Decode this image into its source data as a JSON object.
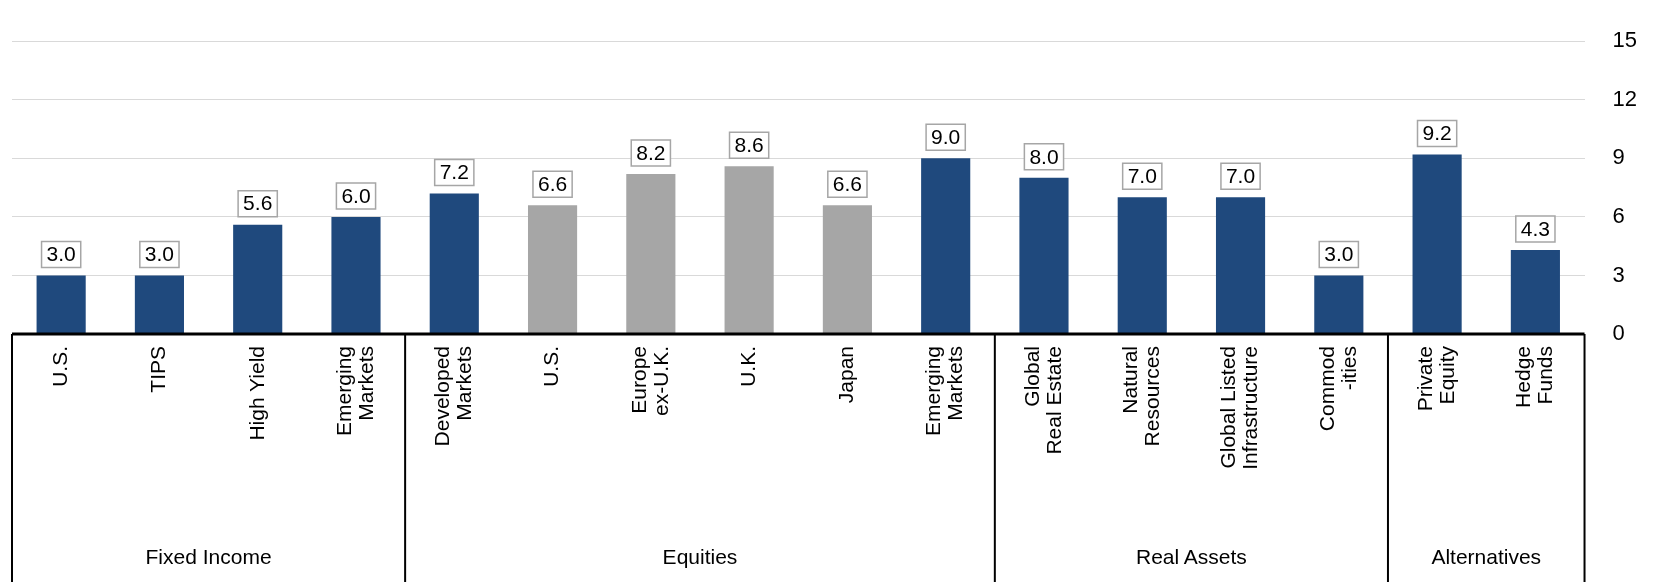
{
  "chart_data": {
    "type": "bar",
    "categories": [
      "U.S.",
      "TIPS",
      "High Yield",
      "Emerging\nMarkets",
      "Developed\nMarkets",
      "U.S.",
      "Europe\nex-U.K.",
      "U.K.",
      "Japan",
      "Emerging\nMarkets",
      "Global\nReal Estate",
      "Natural\nResources",
      "Global Listed\nInfrastructure",
      "Commod\n-ities",
      "Private\nEquity",
      "Hedge\nFunds"
    ],
    "values": [
      3.0,
      3.0,
      5.6,
      6.0,
      7.2,
      6.6,
      8.2,
      8.6,
      6.6,
      9.0,
      8.0,
      7.0,
      7.0,
      3.0,
      9.2,
      4.3
    ],
    "value_labels": [
      "3.0",
      "3.0",
      "5.6",
      "6.0",
      "7.2",
      "6.6",
      "8.2",
      "8.6",
      "6.6",
      "9.0",
      "8.0",
      "7.0",
      "7.0",
      "3.0",
      "9.2",
      "4.3"
    ],
    "colors": [
      "#1f497d",
      "#1f497d",
      "#1f497d",
      "#1f497d",
      "#1f497d",
      "#a6a6a6",
      "#a6a6a6",
      "#a6a6a6",
      "#a6a6a6",
      "#1f497d",
      "#1f497d",
      "#1f497d",
      "#1f497d",
      "#1f497d",
      "#1f497d",
      "#1f497d"
    ],
    "ylim": [
      0,
      15
    ],
    "yticks": [
      0,
      3,
      6,
      9,
      12,
      15
    ],
    "grid": "y",
    "annotations": [
      "Fixed Income",
      "Equities",
      "Real Assets",
      "Alternatives"
    ]
  }
}
